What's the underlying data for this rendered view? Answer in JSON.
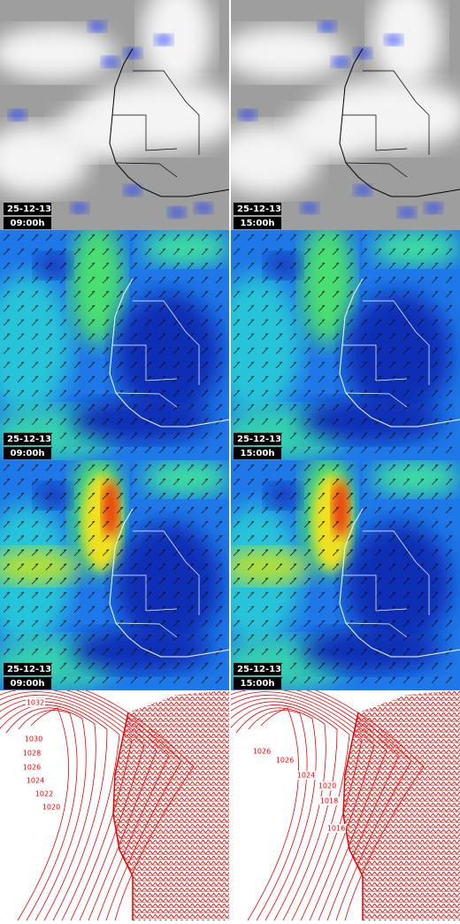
{
  "panels": [
    {
      "date": "25-12-13",
      "time": "09:00h"
    },
    {
      "date": "25-12-13",
      "time": "15:00h"
    },
    {
      "date": "25-12-13",
      "time": "09:00h"
    },
    {
      "date": "25-12-13",
      "time": "15:00h"
    },
    {
      "date": "25-12-13",
      "time": "09:00h"
    },
    {
      "date": "25-12-13",
      "time": "15:00h"
    }
  ],
  "isobars": {
    "left": [
      "1032",
      "1030",
      "1028",
      "1026",
      "1024",
      "1022",
      "1020"
    ],
    "right": [
      "1026",
      "1026",
      "1024",
      "1020",
      "1018",
      "1016"
    ]
  }
}
